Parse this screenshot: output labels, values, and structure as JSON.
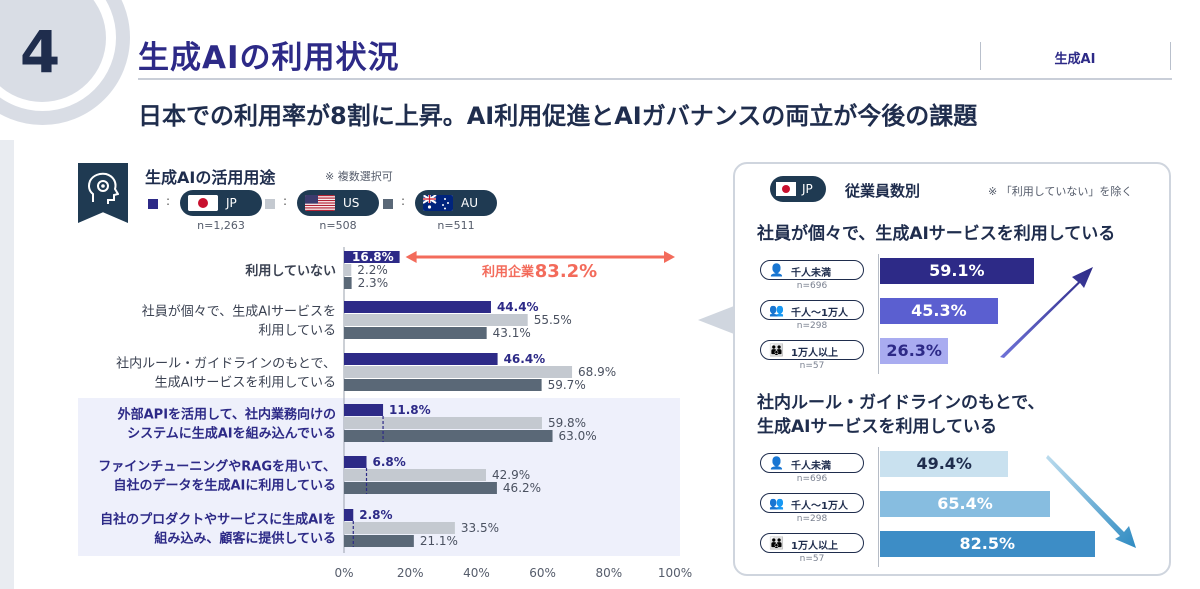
{
  "header": {
    "number": "4",
    "title": "生成AIの利用状況",
    "tag": "生成AI",
    "subtitle": "日本での利用率が8割に上昇。AI利用促進とAIガバナンスの両立が今後の課題"
  },
  "usage_panel": {
    "title": "生成AIの活用用途",
    "note": "※ 複数選択可",
    "legend": [
      {
        "code": "JP",
        "n": "n=1,263",
        "color": "#2d2a87"
      },
      {
        "code": "US",
        "n": "n=508",
        "color": "#c4c9d0"
      },
      {
        "code": "AU",
        "n": "n=511",
        "color": "#5a6877"
      }
    ],
    "usage_label": "利用企業",
    "usage_value": "83.2%"
  },
  "chart_data": {
    "type": "bar",
    "orientation": "horizontal",
    "title": "生成AIの活用用途",
    "categories": [
      "利用していない",
      "社員が個々で、生成AIサービスを\n利用している",
      "社内ルール・ガイドラインのもとで、\n生成AIサービスを利用している",
      "外部APIを活用して、社内業務向けの\nシステムに生成AIを組み込んでいる",
      "ファインチューニングやRAGを用いて、\n自社のデータを生成AIに利用している",
      "自社のプロダクトやサービスに生成AIを\n組み込み、顧客に提供している"
    ],
    "series": [
      {
        "name": "JP",
        "values": [
          16.8,
          44.4,
          46.4,
          11.8,
          6.8,
          2.8
        ],
        "labels": [
          "16.8%",
          "44.4%",
          "46.4%",
          "11.8%",
          "6.8%",
          "2.8%"
        ]
      },
      {
        "name": "US",
        "values": [
          2.2,
          55.5,
          68.9,
          59.8,
          42.9,
          33.5
        ],
        "labels": [
          "2.2%",
          "55.5%",
          "68.9%",
          "59.8%",
          "42.9%",
          "33.5%"
        ]
      },
      {
        "name": "AU",
        "values": [
          2.3,
          43.1,
          59.7,
          63.0,
          46.2,
          21.1
        ],
        "labels": [
          "2.3%",
          "43.1%",
          "59.7%",
          "63.0%",
          "46.2%",
          "21.1%"
        ]
      }
    ],
    "highlighted_categories": [
      3,
      4,
      5
    ],
    "xlim": [
      0,
      100
    ],
    "xticks": [
      "0%",
      "20%",
      "40%",
      "60%",
      "80%",
      "100%"
    ],
    "grid": false
  },
  "employee_panel": {
    "country_code": "JP",
    "title": "従業員数別",
    "note": "※ 「利用していない」を除く",
    "groups": [
      {
        "heading": "社員が個々で、生成AIサービスを利用している",
        "trend": "up",
        "rows": [
          {
            "size": "千人未満",
            "n": "n=696",
            "value": 59.1,
            "label": "59.1%"
          },
          {
            "size": "千人～1万人",
            "n": "n=298",
            "value": 45.3,
            "label": "45.3%"
          },
          {
            "size": "1万人以上",
            "n": "n=57",
            "value": 26.3,
            "label": "26.3%"
          }
        ]
      },
      {
        "heading": "社内ルール・ガイドラインのもとで、\n生成AIサービスを利用している",
        "trend": "down",
        "rows": [
          {
            "size": "千人未満",
            "n": "n=696",
            "value": 49.4,
            "label": "49.4%"
          },
          {
            "size": "千人～1万人",
            "n": "n=298",
            "value": 65.4,
            "label": "65.4%"
          },
          {
            "size": "1万人以上",
            "n": "n=57",
            "value": 82.5,
            "label": "82.5%"
          }
        ]
      }
    ]
  }
}
